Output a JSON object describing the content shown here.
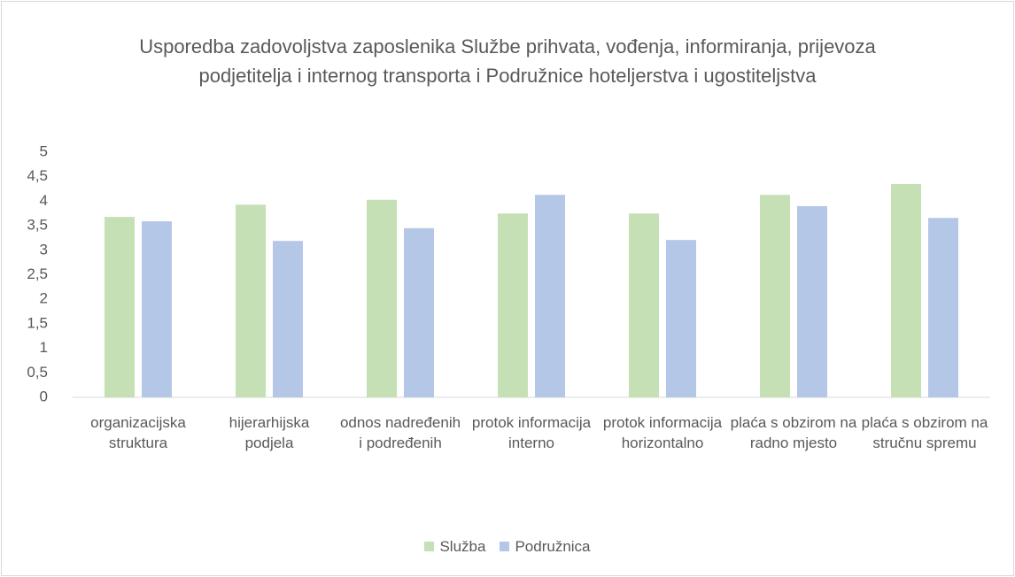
{
  "chart_data": {
    "type": "bar",
    "title": "Usporedba zadovoljstva zaposlenika Službe prihvata, vođenja, informiranja, prijevoza podjetitelja i internog transporta i Podružnice hoteljerstva i ugostiteljstva",
    "categories": [
      "organizacijska struktura",
      "hijerarhijska podjela",
      "odnos nadređenih i podređenih",
      "protok informacija interno",
      "protok informacija horizontalno",
      "plaća s obzirom na radno mjesto",
      "plaća s obzirom na stručnu spremu"
    ],
    "series": [
      {
        "name": "Služba",
        "color": "#c5e0b4",
        "values": [
          3.68,
          3.93,
          4.03,
          3.75,
          3.75,
          4.13,
          4.35
        ]
      },
      {
        "name": "Podružnica",
        "color": "#b4c7e7",
        "values": [
          3.59,
          3.19,
          3.45,
          4.13,
          3.21,
          3.9,
          3.66
        ]
      }
    ],
    "ylim": [
      0,
      5
    ],
    "yticks": [
      0,
      {
        "value": 0.5,
        "label": "0,5"
      },
      1,
      {
        "value": 1.5,
        "label": "1,5"
      },
      2,
      {
        "value": 2.5,
        "label": "2,5"
      },
      3,
      {
        "value": 3.5,
        "label": "3,5"
      },
      4,
      {
        "value": 4.5,
        "label": "4,5"
      },
      5
    ],
    "grid": false,
    "legend": "bottom"
  }
}
